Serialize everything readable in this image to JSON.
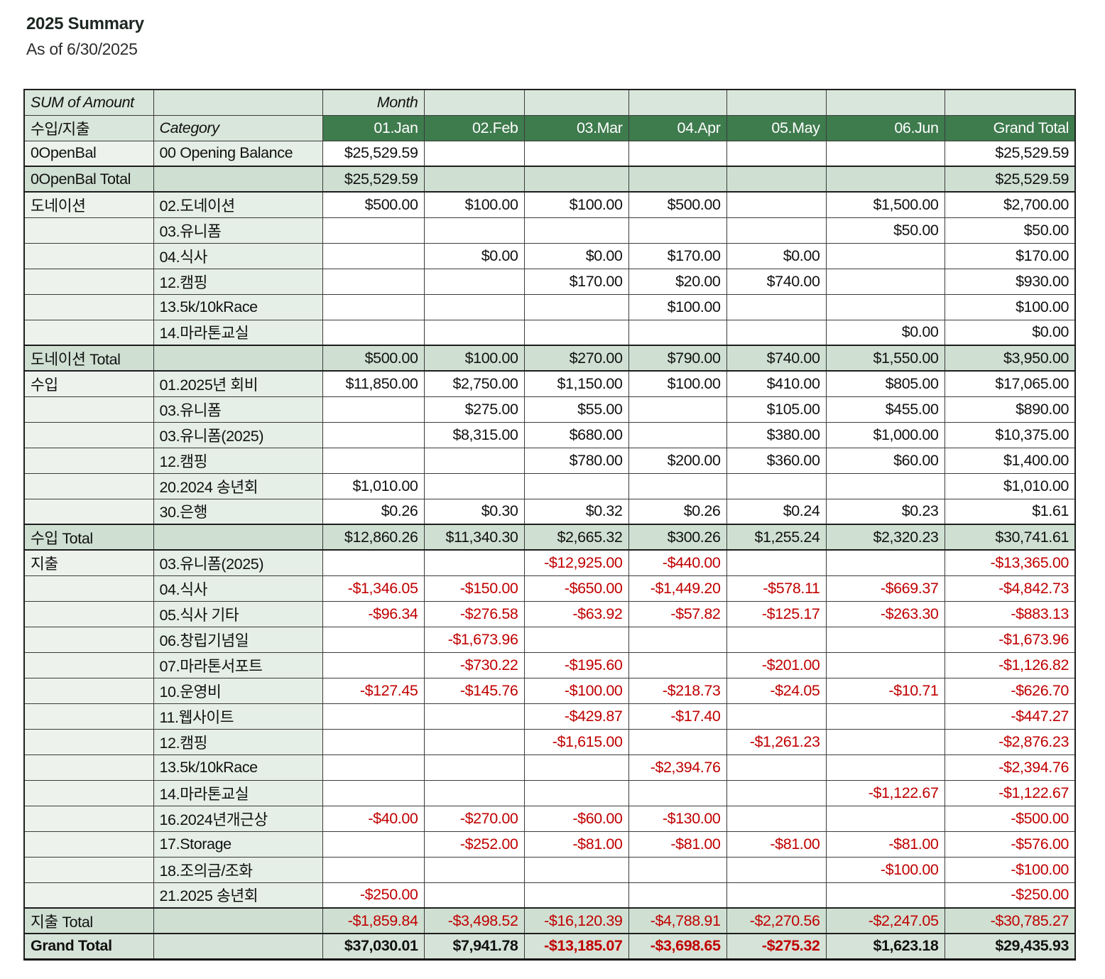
{
  "page": {
    "title": "2025 Summary",
    "subtitle": "As of 6/30/2025"
  },
  "colors": {
    "header_dark_green": "#3e7b4d",
    "header_light_green": "#d9e6db",
    "label_cell_green": "#e9f0ea",
    "total_row_green": "#cfe0d2",
    "grand_total_row_green": "#d6e3d8",
    "negative_red": "#c00000",
    "header_text_white": "#ffffff"
  },
  "pivot": {
    "corner_label": "SUM of Amount",
    "month_label": "Month",
    "row_header_label": "수입/지출",
    "category_label": "Category",
    "columns": [
      "01.Jan",
      "02.Feb",
      "03.Mar",
      "04.Apr",
      "05.May",
      "06.Jun",
      "Grand Total"
    ],
    "rows": [
      {
        "kind": "item",
        "group": "0OpenBal",
        "category": "00 Opening Balance",
        "values": [
          "$25,529.59",
          "",
          "",
          "",
          "",
          "",
          "$25,529.59"
        ]
      },
      {
        "kind": "total",
        "group": "0OpenBal Total",
        "category": "",
        "values": [
          "$25,529.59",
          "",
          "",
          "",
          "",
          "",
          "$25,529.59"
        ]
      },
      {
        "kind": "item",
        "group": "도네이션",
        "category": "02.도네이션",
        "values": [
          "$500.00",
          "$100.00",
          "$100.00",
          "$500.00",
          "",
          "$1,500.00",
          "$2,700.00"
        ]
      },
      {
        "kind": "item",
        "group": "",
        "category": "03.유니폼",
        "values": [
          "",
          "",
          "",
          "",
          "",
          "$50.00",
          "$50.00"
        ]
      },
      {
        "kind": "item",
        "group": "",
        "category": "04.식사",
        "values": [
          "",
          "$0.00",
          "$0.00",
          "$170.00",
          "$0.00",
          "",
          "$170.00"
        ]
      },
      {
        "kind": "item",
        "group": "",
        "category": "12.캠핑",
        "values": [
          "",
          "",
          "$170.00",
          "$20.00",
          "$740.00",
          "",
          "$930.00"
        ]
      },
      {
        "kind": "item",
        "group": "",
        "category": "13.5k/10kRace",
        "values": [
          "",
          "",
          "",
          "$100.00",
          "",
          "",
          "$100.00"
        ]
      },
      {
        "kind": "item",
        "group": "",
        "category": "14.마라톤교실",
        "values": [
          "",
          "",
          "",
          "",
          "",
          "$0.00",
          "$0.00"
        ]
      },
      {
        "kind": "total",
        "group": "도네이션 Total",
        "category": "",
        "values": [
          "$500.00",
          "$100.00",
          "$270.00",
          "$790.00",
          "$740.00",
          "$1,550.00",
          "$3,950.00"
        ]
      },
      {
        "kind": "item",
        "group": "수입",
        "category": "01.2025년 회비",
        "values": [
          "$11,850.00",
          "$2,750.00",
          "$1,150.00",
          "$100.00",
          "$410.00",
          "$805.00",
          "$17,065.00"
        ]
      },
      {
        "kind": "item",
        "group": "",
        "category": "03.유니폼",
        "values": [
          "",
          "$275.00",
          "$55.00",
          "",
          "$105.00",
          "$455.00",
          "$890.00"
        ]
      },
      {
        "kind": "item",
        "group": "",
        "category": "03.유니폼(2025)",
        "values": [
          "",
          "$8,315.00",
          "$680.00",
          "",
          "$380.00",
          "$1,000.00",
          "$10,375.00"
        ]
      },
      {
        "kind": "item",
        "group": "",
        "category": "12.캠핑",
        "values": [
          "",
          "",
          "$780.00",
          "$200.00",
          "$360.00",
          "$60.00",
          "$1,400.00"
        ]
      },
      {
        "kind": "item",
        "group": "",
        "category": "20.2024 송년회",
        "values": [
          "$1,010.00",
          "",
          "",
          "",
          "",
          "",
          "$1,010.00"
        ]
      },
      {
        "kind": "item",
        "group": "",
        "category": "30.은행",
        "values": [
          "$0.26",
          "$0.30",
          "$0.32",
          "$0.26",
          "$0.24",
          "$0.23",
          "$1.61"
        ]
      },
      {
        "kind": "total",
        "group": "수입 Total",
        "category": "",
        "values": [
          "$12,860.26",
          "$11,340.30",
          "$2,665.32",
          "$300.26",
          "$1,255.24",
          "$2,320.23",
          "$30,741.61"
        ]
      },
      {
        "kind": "item",
        "group": "지출",
        "category": "03.유니폼(2025)",
        "values": [
          "",
          "",
          "-$12,925.00",
          "-$440.00",
          "",
          "",
          "-$13,365.00"
        ]
      },
      {
        "kind": "item",
        "group": "",
        "category": "04.식사",
        "values": [
          "-$1,346.05",
          "-$150.00",
          "-$650.00",
          "-$1,449.20",
          "-$578.11",
          "-$669.37",
          "-$4,842.73"
        ]
      },
      {
        "kind": "item",
        "group": "",
        "category": "05.식사 기타",
        "values": [
          "-$96.34",
          "-$276.58",
          "-$63.92",
          "-$57.82",
          "-$125.17",
          "-$263.30",
          "-$883.13"
        ]
      },
      {
        "kind": "item",
        "group": "",
        "category": "06.창립기념일",
        "values": [
          "",
          "-$1,673.96",
          "",
          "",
          "",
          "",
          "-$1,673.96"
        ]
      },
      {
        "kind": "item",
        "group": "",
        "category": "07.마라톤서포트",
        "values": [
          "",
          "-$730.22",
          "-$195.60",
          "",
          "-$201.00",
          "",
          "-$1,126.82"
        ]
      },
      {
        "kind": "item",
        "group": "",
        "category": "10.운영비",
        "values": [
          "-$127.45",
          "-$145.76",
          "-$100.00",
          "-$218.73",
          "-$24.05",
          "-$10.71",
          "-$626.70"
        ]
      },
      {
        "kind": "item",
        "group": "",
        "category": "11.웹사이트",
        "values": [
          "",
          "",
          "-$429.87",
          "-$17.40",
          "",
          "",
          "-$447.27"
        ]
      },
      {
        "kind": "item",
        "group": "",
        "category": "12.캠핑",
        "values": [
          "",
          "",
          "-$1,615.00",
          "",
          "-$1,261.23",
          "",
          "-$2,876.23"
        ]
      },
      {
        "kind": "item",
        "group": "",
        "category": "13.5k/10kRace",
        "values": [
          "",
          "",
          "",
          "-$2,394.76",
          "",
          "",
          "-$2,394.76"
        ]
      },
      {
        "kind": "item",
        "group": "",
        "category": "14.마라톤교실",
        "values": [
          "",
          "",
          "",
          "",
          "",
          "-$1,122.67",
          "-$1,122.67"
        ]
      },
      {
        "kind": "item",
        "group": "",
        "category": "16.2024년개근상",
        "values": [
          "-$40.00",
          "-$270.00",
          "-$60.00",
          "-$130.00",
          "",
          "",
          "-$500.00"
        ]
      },
      {
        "kind": "item",
        "group": "",
        "category": "17.Storage",
        "values": [
          "",
          "-$252.00",
          "-$81.00",
          "-$81.00",
          "-$81.00",
          "-$81.00",
          "-$576.00"
        ]
      },
      {
        "kind": "item",
        "group": "",
        "category": "18.조의금/조화",
        "values": [
          "",
          "",
          "",
          "",
          "",
          "-$100.00",
          "-$100.00"
        ]
      },
      {
        "kind": "item",
        "group": "",
        "category": "21.2025 송년회",
        "values": [
          "-$250.00",
          "",
          "",
          "",
          "",
          "",
          "-$250.00"
        ]
      },
      {
        "kind": "total",
        "group": "지출 Total",
        "category": "",
        "values": [
          "-$1,859.84",
          "-$3,498.52",
          "-$16,120.39",
          "-$4,788.91",
          "-$2,270.56",
          "-$2,247.05",
          "-$30,785.27"
        ]
      },
      {
        "kind": "grandtotal",
        "group": "Grand Total",
        "category": "",
        "values": [
          "$37,030.01",
          "$7,941.78",
          "-$13,185.07",
          "-$3,698.65",
          "-$275.32",
          "$1,623.18",
          "$29,435.93"
        ]
      }
    ]
  }
}
